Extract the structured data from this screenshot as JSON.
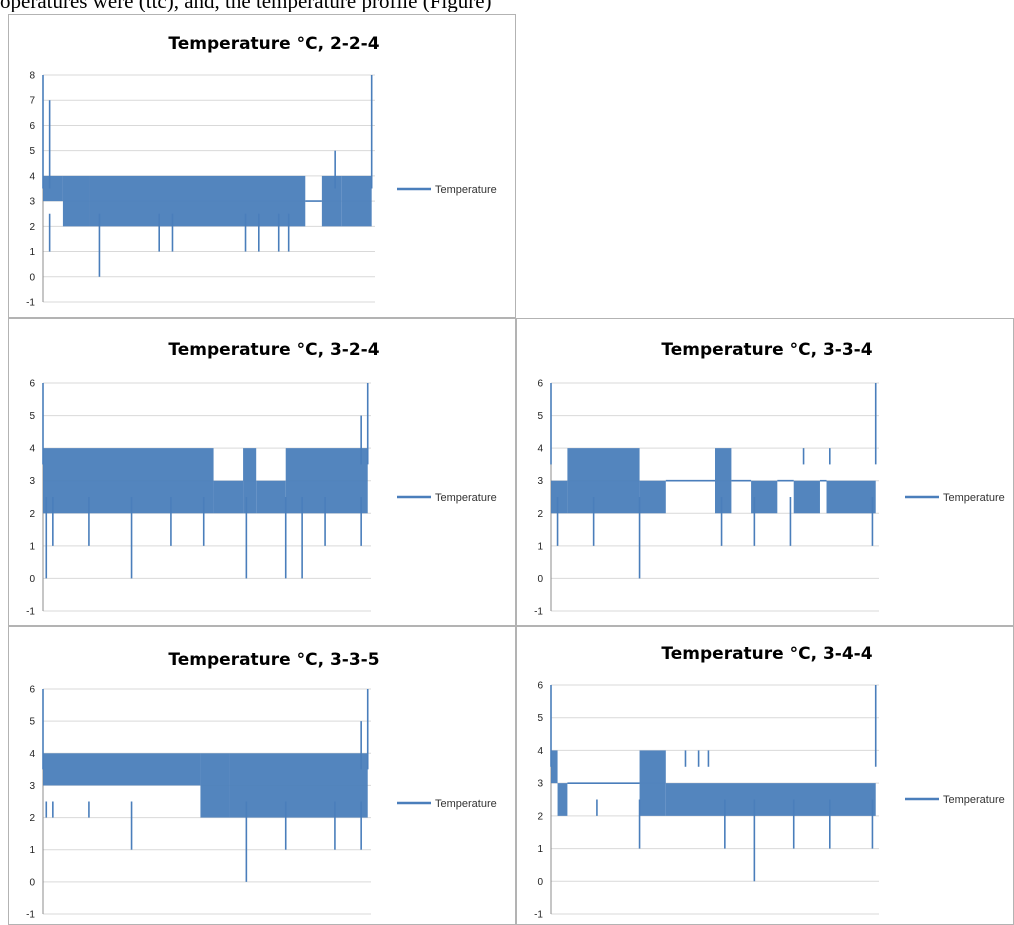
{
  "page": {
    "header_text": "operatures were (ttc), and, the temperature profile (Figure)"
  },
  "colors": {
    "series": "#4a7ebb",
    "grid": "#d9d9d9",
    "border": "#b3b3b3"
  },
  "chart_data": [
    {
      "id": "c224",
      "type": "line",
      "title": "Temperature °C, 2-2-4",
      "ylim": [
        -1,
        8
      ],
      "yticks": [
        -1,
        0,
        1,
        2,
        3,
        4,
        5,
        6,
        7,
        8
      ],
      "grid": true,
      "legend": "right",
      "series": [
        {
          "name": "Temperature",
          "segments": [
            {
              "x0": 0.0,
              "x1": 0.06,
              "lo": 3,
              "hi": 4
            },
            {
              "x0": 0.06,
              "x1": 0.14,
              "lo": 2,
              "hi": 4
            },
            {
              "x0": 0.14,
              "x1": 0.79,
              "lo": 2,
              "hi": 4
            },
            {
              "x0": 0.79,
              "x1": 0.84,
              "lo": 3,
              "hi": 3
            },
            {
              "x0": 0.84,
              "x1": 0.9,
              "lo": 2,
              "hi": 4
            },
            {
              "x0": 0.9,
              "x1": 0.99,
              "lo": 2,
              "hi": 4
            }
          ],
          "spikes": [
            {
              "x": 0.0,
              "y": 8
            },
            {
              "x": 0.02,
              "y": 7
            },
            {
              "x": 0.02,
              "y": 1
            },
            {
              "x": 0.17,
              "y": 0
            },
            {
              "x": 0.35,
              "y": 1
            },
            {
              "x": 0.39,
              "y": 1
            },
            {
              "x": 0.61,
              "y": 1
            },
            {
              "x": 0.65,
              "y": 1
            },
            {
              "x": 0.71,
              "y": 1
            },
            {
              "x": 0.74,
              "y": 1
            },
            {
              "x": 0.88,
              "y": 5
            },
            {
              "x": 0.99,
              "y": 8
            }
          ]
        }
      ]
    },
    {
      "id": "c324",
      "type": "line",
      "title": "Temperature °C, 3-2-4",
      "ylim": [
        -1,
        6
      ],
      "yticks": [
        -1,
        0,
        1,
        2,
        3,
        4,
        5,
        6
      ],
      "grid": true,
      "legend": "right",
      "series": [
        {
          "name": "Temperature",
          "segments": [
            {
              "x0": 0.0,
              "x1": 0.52,
              "lo": 2,
              "hi": 4
            },
            {
              "x0": 0.52,
              "x1": 0.61,
              "lo": 2,
              "hi": 3
            },
            {
              "x0": 0.61,
              "x1": 0.65,
              "lo": 2,
              "hi": 4
            },
            {
              "x0": 0.65,
              "x1": 0.74,
              "lo": 2,
              "hi": 3
            },
            {
              "x0": 0.74,
              "x1": 0.99,
              "lo": 2,
              "hi": 4
            }
          ],
          "spikes": [
            {
              "x": 0.0,
              "y": 6
            },
            {
              "x": 0.01,
              "y": 0
            },
            {
              "x": 0.03,
              "y": 1
            },
            {
              "x": 0.14,
              "y": 1
            },
            {
              "x": 0.27,
              "y": 0
            },
            {
              "x": 0.39,
              "y": 1
            },
            {
              "x": 0.49,
              "y": 1
            },
            {
              "x": 0.62,
              "y": 0
            },
            {
              "x": 0.74,
              "y": 0
            },
            {
              "x": 0.79,
              "y": 0
            },
            {
              "x": 0.86,
              "y": 1
            },
            {
              "x": 0.97,
              "y": 1
            },
            {
              "x": 0.97,
              "y": 5
            },
            {
              "x": 0.99,
              "y": 6
            }
          ]
        }
      ]
    },
    {
      "id": "c334",
      "type": "line",
      "title": "Temperature °C, 3-3-4",
      "ylim": [
        -1,
        6
      ],
      "yticks": [
        -1,
        0,
        1,
        2,
        3,
        4,
        5,
        6
      ],
      "grid": true,
      "legend": "right",
      "series": [
        {
          "name": "Temperature",
          "segments": [
            {
              "x0": 0.0,
              "x1": 0.05,
              "lo": 2,
              "hi": 3
            },
            {
              "x0": 0.05,
              "x1": 0.27,
              "lo": 2,
              "hi": 4
            },
            {
              "x0": 0.27,
              "x1": 0.35,
              "lo": 2,
              "hi": 3
            },
            {
              "x0": 0.35,
              "x1": 0.5,
              "lo": 3,
              "hi": 3
            },
            {
              "x0": 0.5,
              "x1": 0.55,
              "lo": 2,
              "hi": 4
            },
            {
              "x0": 0.55,
              "x1": 0.61,
              "lo": 3,
              "hi": 3
            },
            {
              "x0": 0.61,
              "x1": 0.69,
              "lo": 2,
              "hi": 3
            },
            {
              "x0": 0.69,
              "x1": 0.74,
              "lo": 3,
              "hi": 3
            },
            {
              "x0": 0.74,
              "x1": 0.82,
              "lo": 2,
              "hi": 3
            },
            {
              "x0": 0.82,
              "x1": 0.84,
              "lo": 3,
              "hi": 3
            },
            {
              "x0": 0.84,
              "x1": 0.99,
              "lo": 2,
              "hi": 3
            }
          ],
          "spikes": [
            {
              "x": 0.0,
              "y": 6
            },
            {
              "x": 0.02,
              "y": 1
            },
            {
              "x": 0.13,
              "y": 1
            },
            {
              "x": 0.27,
              "y": 0
            },
            {
              "x": 0.52,
              "y": 1
            },
            {
              "x": 0.62,
              "y": 1
            },
            {
              "x": 0.73,
              "y": 1
            },
            {
              "x": 0.77,
              "y": 4
            },
            {
              "x": 0.85,
              "y": 4
            },
            {
              "x": 0.98,
              "y": 1
            },
            {
              "x": 0.99,
              "y": 6
            }
          ]
        }
      ]
    },
    {
      "id": "c335",
      "type": "line",
      "title": "Temperature °C, 3-3-5",
      "ylim": [
        -1,
        6
      ],
      "yticks": [
        -1,
        0,
        1,
        2,
        3,
        4,
        5,
        6
      ],
      "grid": true,
      "legend": "right",
      "series": [
        {
          "name": "Temperature",
          "segments": [
            {
              "x0": 0.0,
              "x1": 0.48,
              "lo": 3,
              "hi": 4
            },
            {
              "x0": 0.48,
              "x1": 0.57,
              "lo": 2,
              "hi": 4
            },
            {
              "x0": 0.57,
              "x1": 0.99,
              "lo": 2,
              "hi": 4
            }
          ],
          "spikes": [
            {
              "x": 0.0,
              "y": 6
            },
            {
              "x": 0.01,
              "y": 2
            },
            {
              "x": 0.03,
              "y": 2
            },
            {
              "x": 0.14,
              "y": 2
            },
            {
              "x": 0.27,
              "y": 1
            },
            {
              "x": 0.62,
              "y": 0
            },
            {
              "x": 0.74,
              "y": 1
            },
            {
              "x": 0.89,
              "y": 1
            },
            {
              "x": 0.97,
              "y": 5
            },
            {
              "x": 0.97,
              "y": 1
            },
            {
              "x": 0.99,
              "y": 6
            }
          ]
        }
      ]
    },
    {
      "id": "c344",
      "type": "line",
      "title": "Temperature °C, 3-4-4",
      "ylim": [
        -1,
        6
      ],
      "yticks": [
        -1,
        0,
        1,
        2,
        3,
        4,
        5,
        6
      ],
      "grid": true,
      "legend": "right",
      "series": [
        {
          "name": "Temperature",
          "segments": [
            {
              "x0": 0.0,
              "x1": 0.02,
              "lo": 3,
              "hi": 4
            },
            {
              "x0": 0.02,
              "x1": 0.05,
              "lo": 2,
              "hi": 3
            },
            {
              "x0": 0.05,
              "x1": 0.27,
              "lo": 3,
              "hi": 3
            },
            {
              "x0": 0.27,
              "x1": 0.35,
              "lo": 2,
              "hi": 4
            },
            {
              "x0": 0.35,
              "x1": 0.5,
              "lo": 2,
              "hi": 3
            },
            {
              "x0": 0.5,
              "x1": 0.99,
              "lo": 2,
              "hi": 3
            }
          ],
          "spikes": [
            {
              "x": 0.0,
              "y": 6
            },
            {
              "x": 0.14,
              "y": 2
            },
            {
              "x": 0.27,
              "y": 1
            },
            {
              "x": 0.41,
              "y": 4
            },
            {
              "x": 0.45,
              "y": 4
            },
            {
              "x": 0.48,
              "y": 4
            },
            {
              "x": 0.53,
              "y": 1
            },
            {
              "x": 0.62,
              "y": 0
            },
            {
              "x": 0.74,
              "y": 1
            },
            {
              "x": 0.85,
              "y": 1
            },
            {
              "x": 0.98,
              "y": 1
            },
            {
              "x": 0.99,
              "y": 6
            }
          ]
        }
      ]
    }
  ]
}
